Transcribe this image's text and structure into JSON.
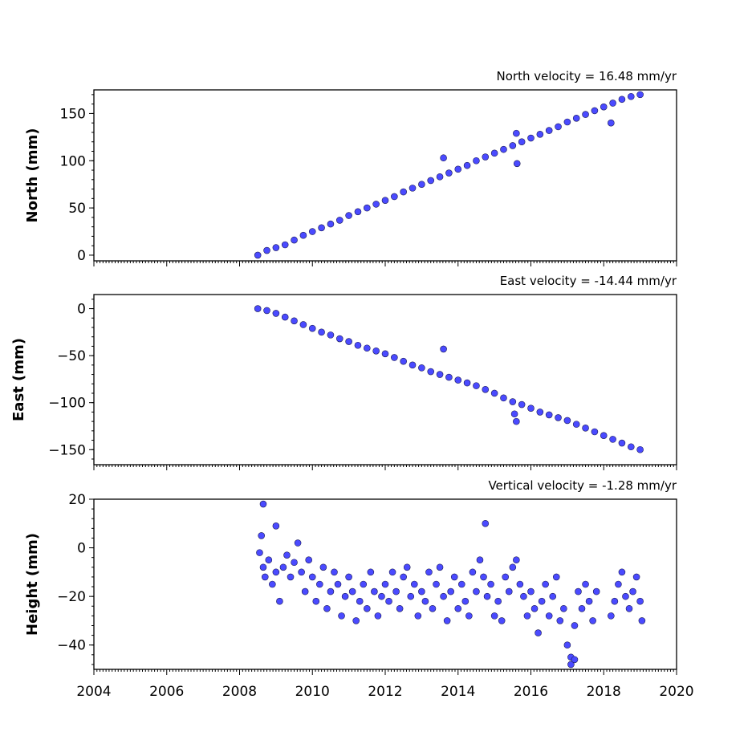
{
  "chart_data": [
    {
      "type": "scatter",
      "title": "North velocity = 16.48 mm/yr",
      "xlabel": "",
      "ylabel": "North (mm)",
      "xlim": [
        2004,
        2020
      ],
      "ylim": [
        -6,
        175
      ],
      "yticks": [
        0,
        50,
        100,
        150
      ],
      "ytick_labels": [
        "0",
        "50",
        "100",
        "150"
      ],
      "series": [
        {
          "color": "#4a4aff",
          "x": [
            2008.5,
            2008.75,
            2009.0,
            2009.25,
            2009.5,
            2009.75,
            2010.0,
            2010.25,
            2010.5,
            2010.75,
            2011.0,
            2011.25,
            2011.5,
            2011.75,
            2012.0,
            2012.25,
            2012.5,
            2012.75,
            2013.0,
            2013.25,
            2013.5,
            2013.75,
            2014.0,
            2014.25,
            2014.5,
            2014.75,
            2015.0,
            2015.25,
            2015.5,
            2015.75,
            2016.0,
            2016.25,
            2016.5,
            2016.75,
            2017.0,
            2017.25,
            2017.5,
            2017.75,
            2018.0,
            2018.25,
            2018.5,
            2018.75,
            2019.0,
            2013.6,
            2015.6,
            2015.62,
            2018.2
          ],
          "y": [
            0,
            5,
            8,
            11,
            16,
            21,
            25,
            29,
            33,
            37,
            42,
            46,
            50,
            54,
            58,
            62,
            67,
            71,
            75,
            79,
            83,
            87,
            91,
            95,
            100,
            104,
            108,
            112,
            116,
            120,
            124,
            128,
            132,
            136,
            141,
            145,
            149,
            153,
            157,
            161,
            165,
            168,
            170,
            103,
            129,
            97,
            140
          ]
        }
      ]
    },
    {
      "type": "scatter",
      "title": "East velocity = -14.44 mm/yr",
      "xlabel": "",
      "ylabel": "East (mm)",
      "xlim": [
        2004,
        2020
      ],
      "ylim": [
        -166,
        15
      ],
      "yticks": [
        0,
        -50,
        -100,
        -150
      ],
      "ytick_labels": [
        "0",
        "−50",
        "−100",
        "−150"
      ],
      "series": [
        {
          "color": "#4a4aff",
          "x": [
            2008.5,
            2008.75,
            2009.0,
            2009.25,
            2009.5,
            2009.75,
            2010.0,
            2010.25,
            2010.5,
            2010.75,
            2011.0,
            2011.25,
            2011.5,
            2011.75,
            2012.0,
            2012.25,
            2012.5,
            2012.75,
            2013.0,
            2013.25,
            2013.5,
            2013.75,
            2014.0,
            2014.25,
            2014.5,
            2014.75,
            2015.0,
            2015.25,
            2015.5,
            2015.75,
            2016.0,
            2016.25,
            2016.5,
            2016.75,
            2017.0,
            2017.25,
            2017.5,
            2017.75,
            2018.0,
            2018.25,
            2018.5,
            2018.75,
            2019.0,
            2013.6,
            2015.55,
            2015.6
          ],
          "y": [
            0,
            -2,
            -5,
            -9,
            -13,
            -17,
            -21,
            -25,
            -28,
            -32,
            -35,
            -39,
            -42,
            -45,
            -48,
            -52,
            -56,
            -60,
            -63,
            -67,
            -70,
            -73,
            -76,
            -79,
            -82,
            -86,
            -90,
            -95,
            -99,
            -102,
            -106,
            -110,
            -113,
            -116,
            -119,
            -123,
            -127,
            -131,
            -135,
            -139,
            -143,
            -147,
            -150,
            -43,
            -112,
            -120
          ]
        }
      ]
    },
    {
      "type": "scatter",
      "title": "Vertical velocity = -1.28 mm/yr",
      "xlabel": "",
      "ylabel": "Height (mm)",
      "xlim": [
        2004,
        2020
      ],
      "ylim": [
        -50,
        20
      ],
      "yticks": [
        20,
        0,
        -20,
        -40
      ],
      "ytick_labels": [
        "20",
        "0",
        "−20",
        "−40"
      ],
      "xticks": [
        2004,
        2006,
        2008,
        2010,
        2012,
        2014,
        2016,
        2018,
        2020
      ],
      "xtick_labels": [
        "2004",
        "2006",
        "2008",
        "2010",
        "2012",
        "2014",
        "2016",
        "2018",
        "2020"
      ],
      "series": [
        {
          "color": "#4a4aff",
          "x": [
            2008.55,
            2008.6,
            2008.65,
            2008.7,
            2008.8,
            2008.9,
            2009.0,
            2009.1,
            2009.2,
            2009.3,
            2009.4,
            2009.5,
            2009.6,
            2009.7,
            2009.8,
            2009.9,
            2010.0,
            2010.1,
            2010.2,
            2010.3,
            2010.4,
            2010.5,
            2010.6,
            2010.7,
            2010.8,
            2010.9,
            2011.0,
            2011.1,
            2011.2,
            2011.3,
            2011.4,
            2011.5,
            2011.6,
            2011.7,
            2011.8,
            2011.9,
            2012.0,
            2012.1,
            2012.2,
            2012.3,
            2012.4,
            2012.5,
            2012.6,
            2012.7,
            2012.8,
            2012.9,
            2013.0,
            2013.1,
            2013.2,
            2013.3,
            2013.4,
            2013.5,
            2013.6,
            2013.7,
            2013.8,
            2013.9,
            2014.0,
            2014.1,
            2014.2,
            2014.3,
            2014.4,
            2014.5,
            2014.6,
            2014.7,
            2014.8,
            2014.9,
            2015.0,
            2015.1,
            2015.2,
            2015.3,
            2015.4,
            2015.5,
            2015.6,
            2015.7,
            2015.8,
            2015.9,
            2016.0,
            2016.1,
            2016.2,
            2016.3,
            2016.4,
            2016.5,
            2016.6,
            2016.7,
            2016.8,
            2016.9,
            2017.0,
            2017.1,
            2017.2,
            2017.3,
            2017.4,
            2017.5,
            2017.6,
            2017.7,
            2017.8,
            2018.2,
            2018.3,
            2018.4,
            2018.5,
            2018.6,
            2018.7,
            2018.8,
            2018.9,
            2019.0,
            2019.05,
            2008.65,
            2009.0,
            2014.75,
            2017.1,
            2017.2
          ],
          "y": [
            -2,
            5,
            -8,
            -12,
            -5,
            -15,
            -10,
            -22,
            -8,
            -3,
            -12,
            -6,
            2,
            -10,
            -18,
            -5,
            -12,
            -22,
            -15,
            -8,
            -25,
            -18,
            -10,
            -15,
            -28,
            -20,
            -12,
            -18,
            -30,
            -22,
            -15,
            -25,
            -10,
            -18,
            -28,
            -20,
            -15,
            -22,
            -10,
            -18,
            -25,
            -12,
            -8,
            -20,
            -15,
            -28,
            -18,
            -22,
            -10,
            -25,
            -15,
            -8,
            -20,
            -30,
            -18,
            -12,
            -25,
            -15,
            -22,
            -28,
            -10,
            -18,
            -5,
            -12,
            -20,
            -15,
            -28,
            -22,
            -30,
            -12,
            -18,
            -8,
            -5,
            -15,
            -20,
            -28,
            -18,
            -25,
            -35,
            -22,
            -15,
            -28,
            -20,
            -12,
            -30,
            -25,
            -40,
            -45,
            -32,
            -18,
            -25,
            -15,
            -22,
            -30,
            -18,
            -28,
            -22,
            -15,
            -10,
            -20,
            -25,
            -18,
            -12,
            -22,
            -30,
            18,
            9,
            10,
            -48,
            -46
          ]
        }
      ]
    }
  ]
}
